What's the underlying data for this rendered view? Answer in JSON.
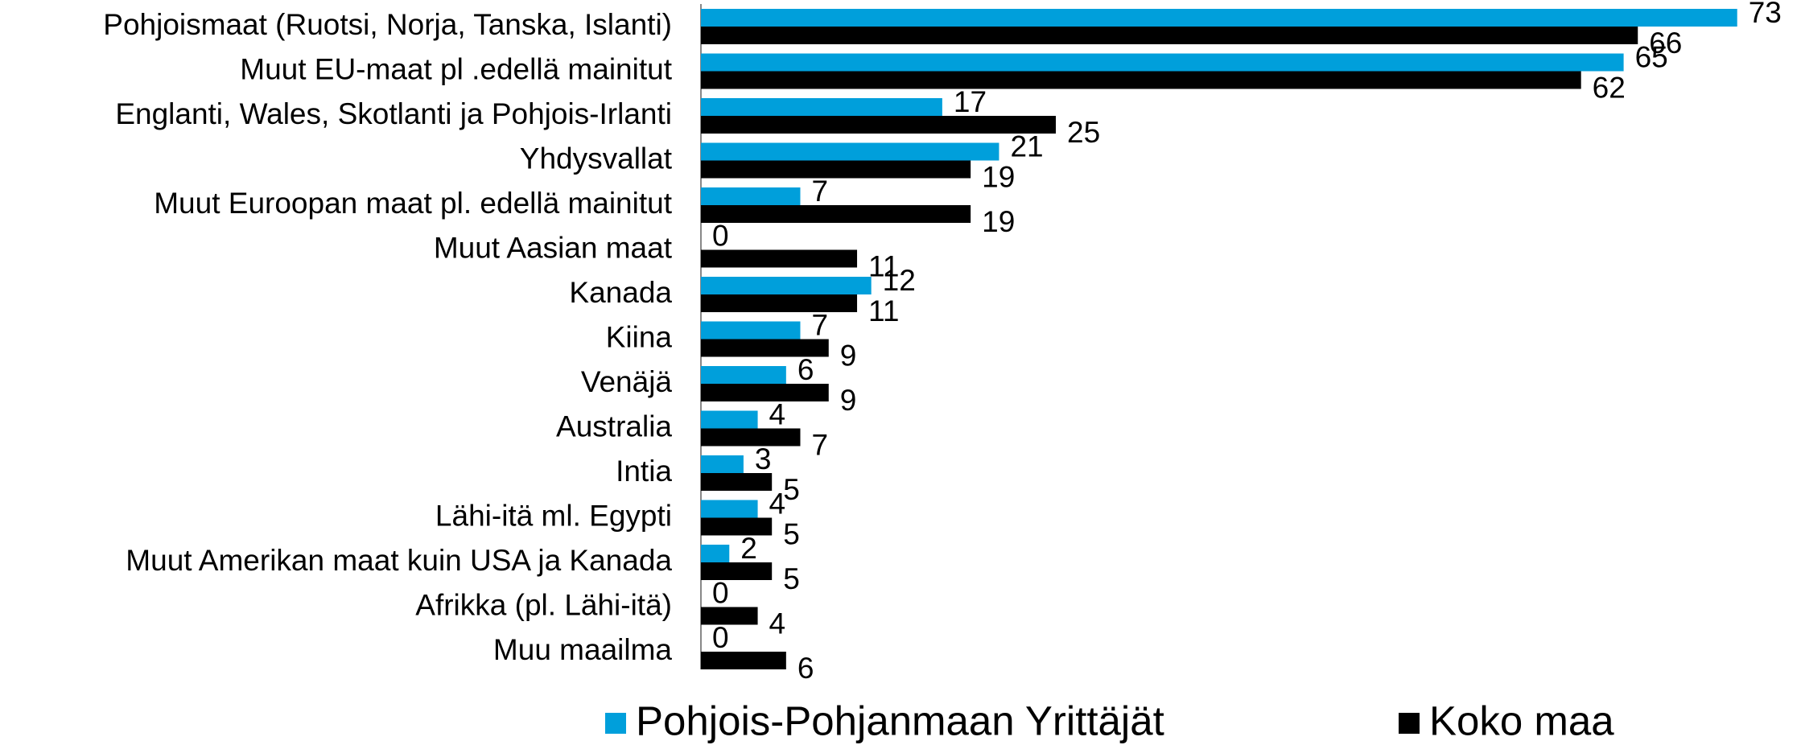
{
  "chart_data": {
    "type": "bar",
    "orientation": "horizontal",
    "categories": [
      "Pohjoismaat (Ruotsi, Norja, Tanska, Islanti)",
      "Muut EU-maat pl .edellä mainitut",
      "Englanti, Wales, Skotlanti ja Pohjois-Irlanti",
      "Yhdysvallat",
      "Muut Euroopan maat pl. edellä mainitut",
      "Muut Aasian maat",
      "Kanada",
      "Kiina",
      "Venäjä",
      "Australia",
      "Intia",
      "Lähi-itä ml. Egypti",
      "Muut Amerikan maat kuin USA ja Kanada",
      "Afrikka (pl. Lähi-itä)",
      "Muu maailma"
    ],
    "series": [
      {
        "name": "Pohjois-Pohjanmaan Yrittäjät",
        "color": "#009fdb",
        "values": [
          73,
          65,
          17,
          21,
          7,
          0,
          12,
          7,
          6,
          4,
          3,
          4,
          2,
          0,
          0
        ]
      },
      {
        "name": "Koko maa",
        "color": "#000000",
        "values": [
          66,
          62,
          25,
          19,
          19,
          11,
          11,
          9,
          9,
          7,
          5,
          5,
          5,
          4,
          6
        ]
      }
    ],
    "xlim": [
      0,
      75
    ],
    "legend": "bottom",
    "data_labels": true
  }
}
